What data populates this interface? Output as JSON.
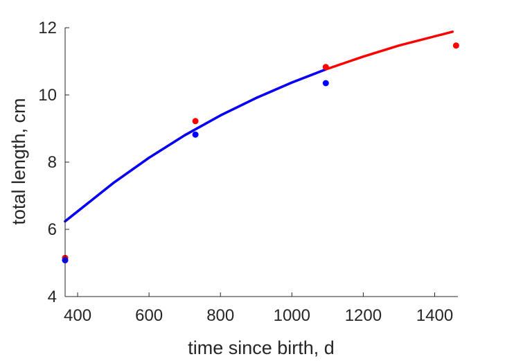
{
  "chart_data": {
    "type": "scatter",
    "xlabel": "time since birth, d",
    "ylabel": "total length, cm",
    "xlim": [
      365,
      1465
    ],
    "ylim": [
      4,
      12
    ],
    "xticks": [
      400,
      600,
      800,
      1000,
      1200,
      1400
    ],
    "yticks": [
      4,
      6,
      8,
      10,
      12
    ],
    "grid": false,
    "scatter_series": [
      {
        "color": "#ff0000",
        "x": [
          365,
          730,
          1095,
          1460
        ],
        "y": [
          5.15,
          9.22,
          10.83,
          11.47
        ]
      },
      {
        "color": "#0000ff",
        "x": [
          365,
          730,
          1095
        ],
        "y": [
          5.08,
          8.82,
          10.35
        ]
      }
    ],
    "curves": [
      {
        "color": "#ff0000",
        "x": [
          365,
          500,
          600,
          700,
          800,
          900,
          1000,
          1095,
          1200,
          1300,
          1450
        ],
        "y": [
          6.24,
          7.38,
          8.13,
          8.8,
          9.39,
          9.91,
          10.37,
          10.76,
          11.14,
          11.47,
          11.88
        ]
      },
      {
        "color": "#0000ff",
        "x": [
          365,
          500,
          600,
          700,
          800,
          900,
          1000,
          1095
        ],
        "y": [
          6.24,
          7.38,
          8.13,
          8.8,
          9.39,
          9.91,
          10.37,
          10.76
        ]
      }
    ]
  }
}
